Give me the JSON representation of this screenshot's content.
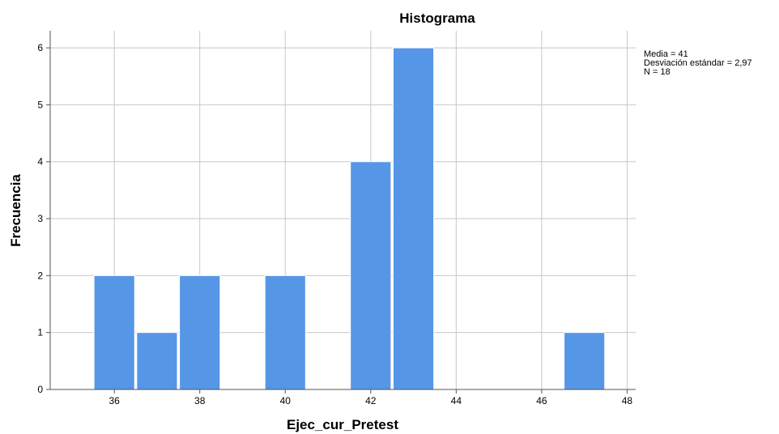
{
  "chart_data": {
    "type": "bar",
    "title": "Histograma",
    "xlabel": "Ejec_cur_Pretest",
    "ylabel": "Frecuencia",
    "xlim": [
      34.5,
      48.2
    ],
    "ylim": [
      0,
      6.3
    ],
    "bin_width": 0.95,
    "x": [
      36,
      37,
      38,
      40,
      42,
      43,
      47
    ],
    "values": [
      2,
      1,
      2,
      2,
      4,
      6,
      1
    ],
    "xticks": [
      36,
      38,
      40,
      42,
      44,
      46,
      48
    ],
    "yticks": [
      0,
      1,
      2,
      3,
      4,
      5,
      6
    ],
    "grid": true,
    "bar_color": "#5596e6",
    "stats": {
      "mean": "Media = 41",
      "std": "Desviación estándar = 2,97",
      "n": "N = 18"
    }
  }
}
